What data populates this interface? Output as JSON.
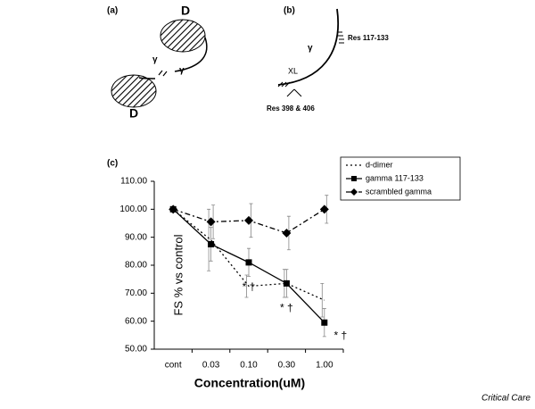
{
  "panel_a": {
    "label": "(a)",
    "domain_top": "D",
    "gamma_left": "γ",
    "gamma_right": "γ",
    "domain_bottom": "D"
  },
  "panel_b": {
    "label": "(b)",
    "residues_top": "Res 117-133",
    "gamma": "γ",
    "crosslink": "XL",
    "residues_bottom": "Res 398 & 406"
  },
  "chart_data": {
    "type": "line",
    "panel_label": "(c)",
    "x_label": "Concentration(uM)",
    "y_label": "FS % vs control",
    "categories": [
      "cont",
      "0.03",
      "0.10",
      "0.30",
      "1.00"
    ],
    "ylim": [
      50,
      110
    ],
    "yticks": [
      {
        "value": 50,
        "label": "50.00"
      },
      {
        "value": 60,
        "label": "60.00"
      },
      {
        "value": 70,
        "label": "70.00"
      },
      {
        "value": 80,
        "label": "80.00"
      },
      {
        "value": 90,
        "label": "90.00"
      },
      {
        "value": 100,
        "label": "100.00"
      },
      {
        "value": 110,
        "label": "110.00"
      }
    ],
    "series": [
      {
        "name": "d-dimer",
        "color": "#000000",
        "line_style": "dotted",
        "marker": "none",
        "values": [
          100,
          89,
          72.5,
          73.5,
          67.5
        ],
        "errors": [
          0,
          11,
          4,
          5,
          6
        ]
      },
      {
        "name": "gamma 117-133",
        "color": "#000000",
        "line_style": "solid",
        "marker": "square",
        "values": [
          100,
          87.5,
          81,
          73.5,
          59.5
        ],
        "errors": [
          0,
          6,
          5,
          5,
          5
        ]
      },
      {
        "name": "scrambled gamma",
        "color": "#000000",
        "line_style": "dashdot",
        "marker": "diamond",
        "values": [
          100,
          95.5,
          96,
          91.5,
          100
        ],
        "errors": [
          0,
          6,
          6,
          6,
          5
        ]
      }
    ],
    "annotations": [
      "* †",
      "* †",
      "* †"
    ],
    "legend": "top-right"
  },
  "footer": "Critical Care"
}
